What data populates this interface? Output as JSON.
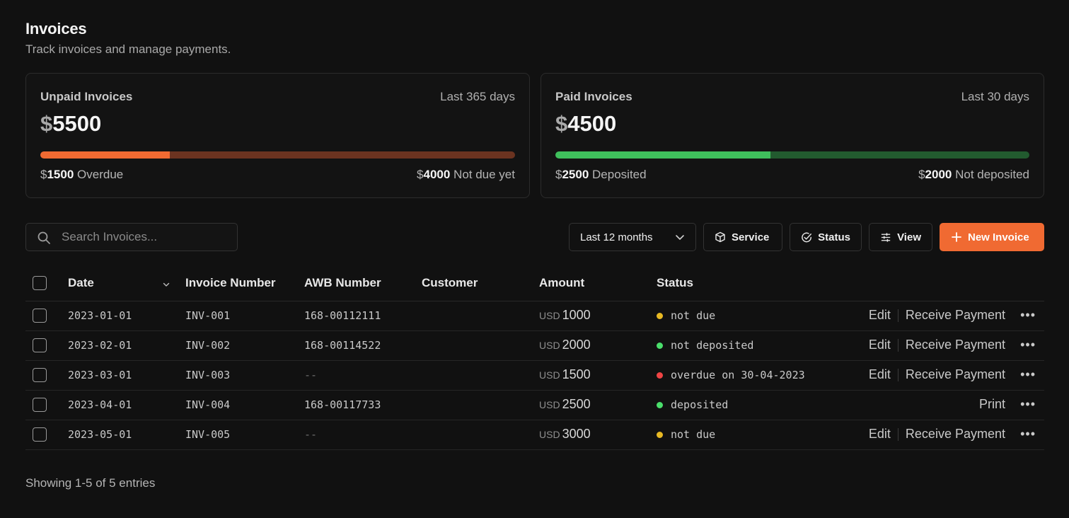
{
  "header": {
    "title": "Invoices",
    "subtitle": "Track invoices and manage payments."
  },
  "cards": {
    "unpaid": {
      "label": "Unpaid Invoices",
      "period": "Last 365 days",
      "currency_symbol": "$",
      "amount": "5500",
      "left_currency": "$",
      "left_amount": "1500",
      "left_label": "Overdue",
      "right_currency": "$",
      "right_amount": "4000",
      "right_label": "Not due yet",
      "progress_fraction": 0.273,
      "fill_color": "#f06a32",
      "rest_color": "#6b3320"
    },
    "paid": {
      "label": "Paid Invoices",
      "period": "Last 30 days",
      "currency_symbol": "$",
      "amount": "4500",
      "left_currency": "$",
      "left_amount": "2500",
      "left_label": "Deposited",
      "right_currency": "$",
      "right_amount": "2000",
      "right_label": "Not deposited",
      "progress_fraction": 0.454,
      "fill_color": "#3fbf5c",
      "rest_color": "#225a2f"
    }
  },
  "toolbar": {
    "search_placeholder": "Search Invoices...",
    "search_icon": "search-icon",
    "range_label": "Last 12 months",
    "service_label": "Service",
    "status_label": "Status",
    "view_label": "View",
    "new_label": "New Invoice",
    "accent_color": "#f06a32"
  },
  "table": {
    "columns": {
      "date": "Date",
      "invoice_number": "Invoice Number",
      "awb_number": "AWB Number",
      "customer": "Customer",
      "amount": "Amount",
      "status": "Status"
    },
    "rows": [
      {
        "date": "2023-01-01",
        "invoice": "INV-001",
        "awb": "168-00112111",
        "customer": "",
        "currency": "USD",
        "amount": "1000",
        "status": "not due",
        "status_color": "#e8b923",
        "actions": [
          "Edit",
          "Receive Payment"
        ]
      },
      {
        "date": "2023-02-01",
        "invoice": "INV-002",
        "awb": "168-00114522",
        "customer": "",
        "currency": "USD",
        "amount": "2000",
        "status": "not deposited",
        "status_color": "#4ade6b",
        "actions": [
          "Edit",
          "Receive Payment"
        ]
      },
      {
        "date": "2023-03-01",
        "invoice": "INV-003",
        "awb": "--",
        "customer": "",
        "currency": "USD",
        "amount": "1500",
        "status": "overdue on 30-04-2023",
        "status_color": "#ef4444",
        "actions": [
          "Edit",
          "Receive Payment"
        ]
      },
      {
        "date": "2023-04-01",
        "invoice": "INV-004",
        "awb": "168-00117733",
        "customer": "",
        "currency": "USD",
        "amount": "2500",
        "status": "deposited",
        "status_color": "#4ade6b",
        "actions": [
          "Print"
        ]
      },
      {
        "date": "2023-05-01",
        "invoice": "INV-005",
        "awb": "--",
        "customer": "",
        "currency": "USD",
        "amount": "3000",
        "status": "not due",
        "status_color": "#e8b923",
        "actions": [
          "Edit",
          "Receive Payment"
        ]
      }
    ]
  },
  "footer": {
    "entries_text": "Showing 1-5 of 5 entries"
  }
}
